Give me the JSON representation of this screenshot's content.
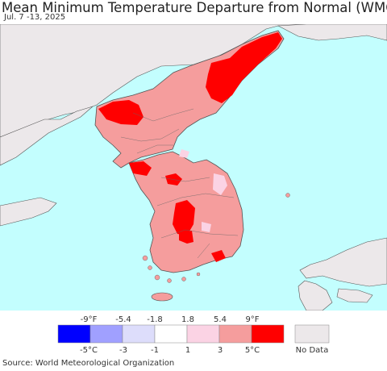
{
  "title": "Mean Minimum Temperature Departure from Normal (WMO)",
  "subtitle": "Jul. 7 -13, 2025",
  "source": "Source: World Meteorological Organization",
  "legend": {
    "fahrenheit_ticks": [
      "-9°F",
      "-5.4",
      "-1.8",
      "1.8",
      "5.4",
      "9°F"
    ],
    "celsius_ticks": [
      "-5°C",
      "-3",
      "-1",
      "1",
      "3",
      "5°C"
    ],
    "bins": [
      {
        "color": "#0000ff",
        "range_c": "< -5"
      },
      {
        "color": "#a0a0ff",
        "range_c": "-5 to -3"
      },
      {
        "color": "#ddddfb",
        "range_c": "-3 to -1"
      },
      {
        "color": "#ffffff",
        "range_c": "-1 to 1"
      },
      {
        "color": "#fbd3e4",
        "range_c": "1 to 3"
      },
      {
        "color": "#f59d9d",
        "range_c": "3 to 5"
      },
      {
        "color": "#ff0000",
        "range_c": "> 5"
      }
    ],
    "no_data_color": "#ece8ea",
    "no_data_label": "No Data"
  },
  "colors": {
    "sea": "#c3fefe",
    "no_data_land": "#ece8ea",
    "warm": "#f59d9d",
    "very_warm": "#ff0000",
    "slight_warm": "#fbd3e4",
    "border": "#555555"
  }
}
